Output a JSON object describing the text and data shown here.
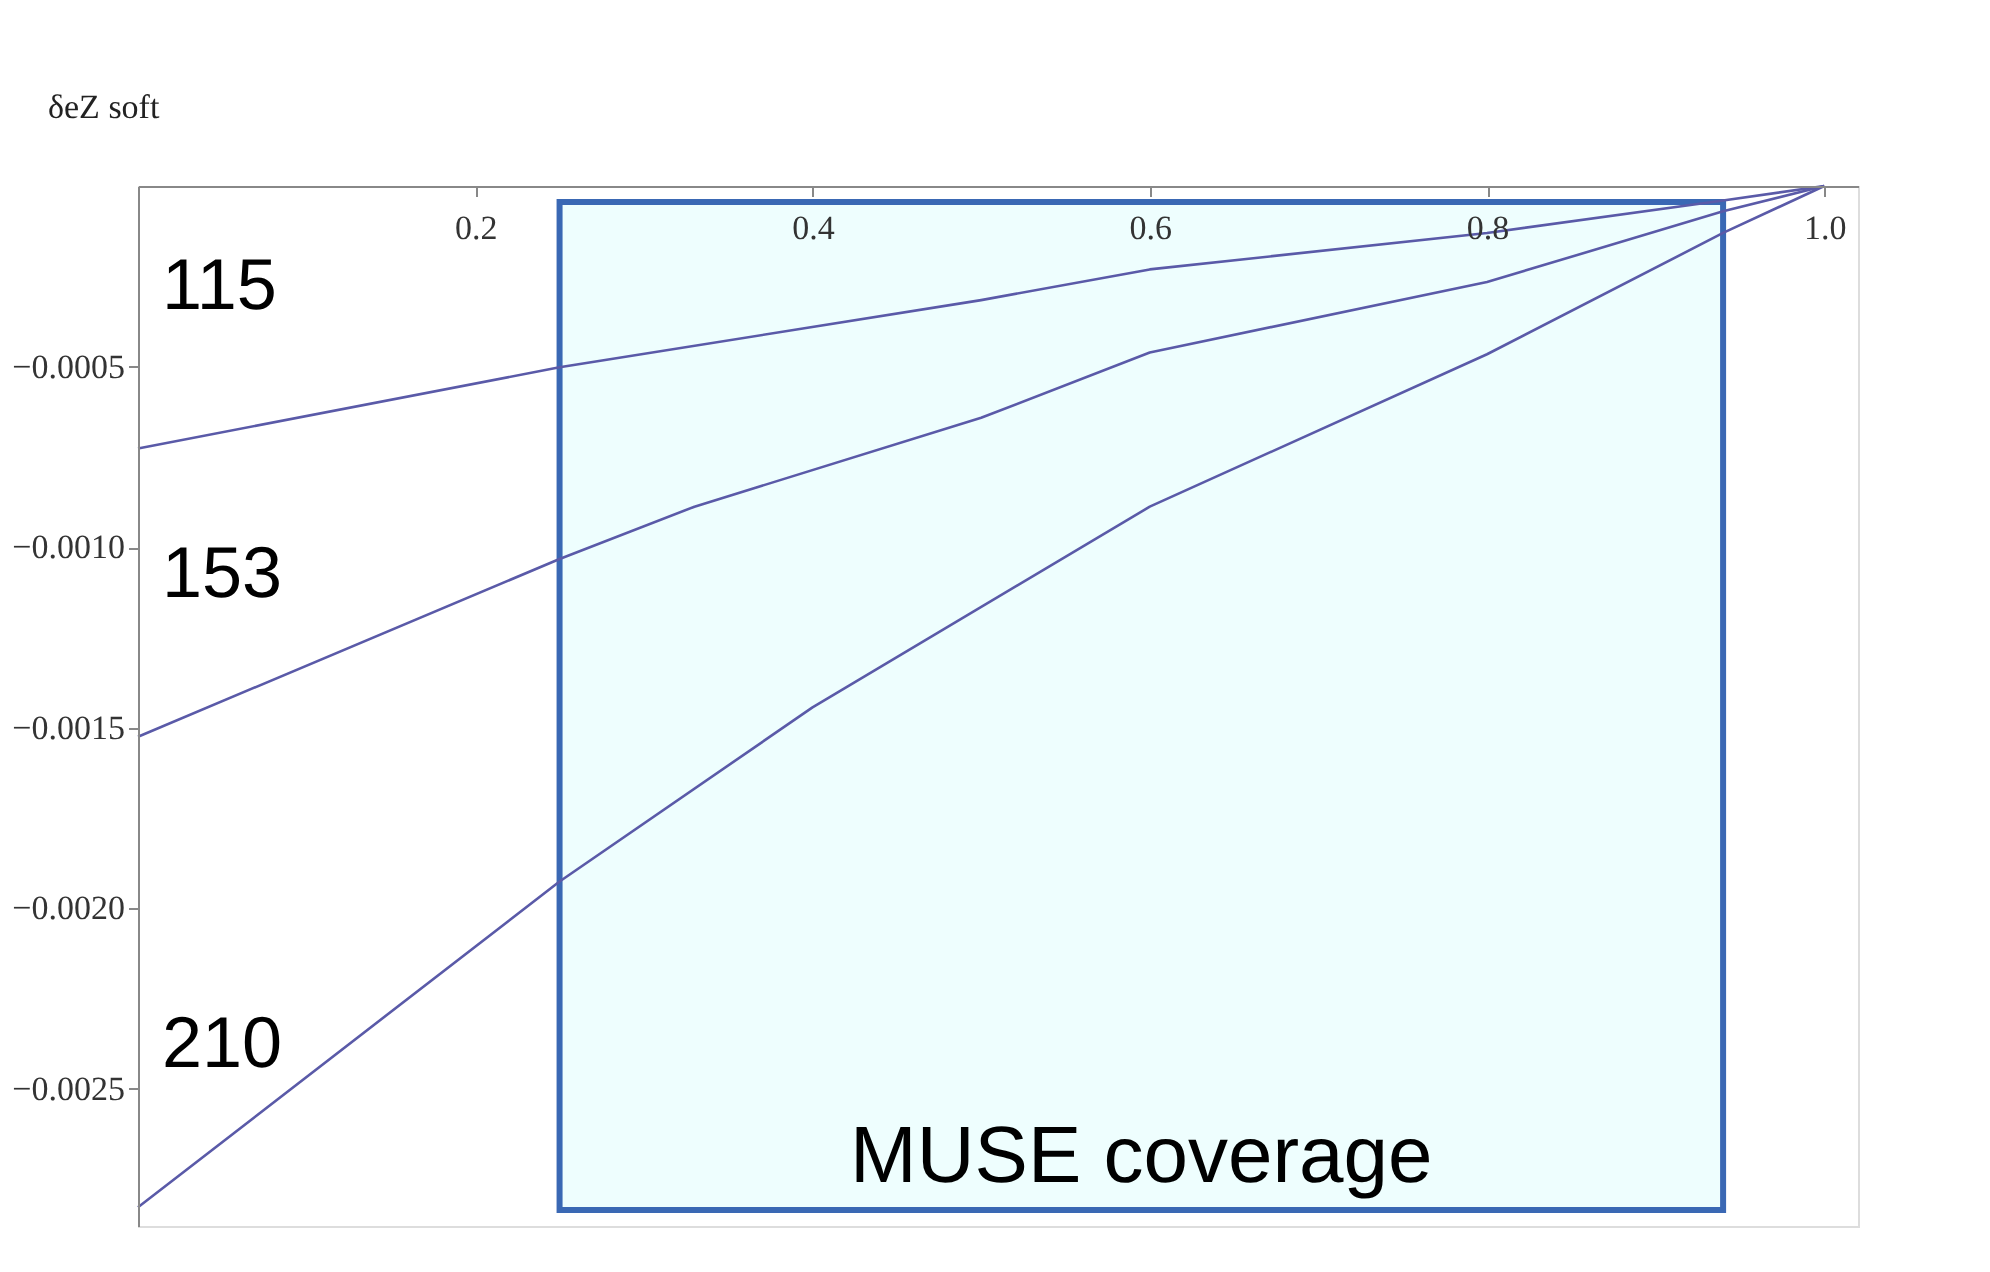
{
  "chart_data": {
    "type": "line",
    "ylabel": "δeZ soft",
    "xlim": [
      0,
      1.02
    ],
    "ylim": [
      -0.00288,
      0
    ],
    "xticks": [
      0.2,
      0.4,
      0.6,
      0.8,
      {
        "value": 1,
        "label": "1.0"
      }
    ],
    "yticks": [
      -0.0005,
      {
        "value": -0.001,
        "label": "−0.0010"
      },
      -0.0015,
      {
        "value": -0.002,
        "label": "−0.0020"
      },
      -0.0025
    ],
    "x": [
      0,
      0.25,
      0.33,
      0.4,
      0.5,
      0.6,
      0.8,
      0.94,
      1.0
    ],
    "series": [
      {
        "name": "115",
        "color": "#5a5aa8",
        "values": [
          -0.000727,
          -0.000502,
          null,
          null,
          -0.000316,
          -0.000231,
          -0.00013,
          -4e-05,
          0
        ]
      },
      {
        "name": "153",
        "color": "#5a5aa8",
        "values": [
          -0.001525,
          -0.001033,
          -0.000888,
          null,
          -0.000642,
          -0.000461,
          -0.000266,
          -7e-05,
          0
        ]
      },
      {
        "name": "210",
        "color": "#5a5aa8",
        "values": [
          -0.002828,
          -0.001926,
          null,
          -0.001444,
          null,
          -0.000888,
          -0.000466,
          -0.00013,
          0
        ]
      }
    ],
    "bands": [
      {
        "axis": "x",
        "from": 0.25,
        "to": 0.94,
        "label": "MUSE coverage",
        "color": "#eefefe"
      }
    ],
    "grid": false,
    "marker": "none",
    "line_style": "solid"
  }
}
